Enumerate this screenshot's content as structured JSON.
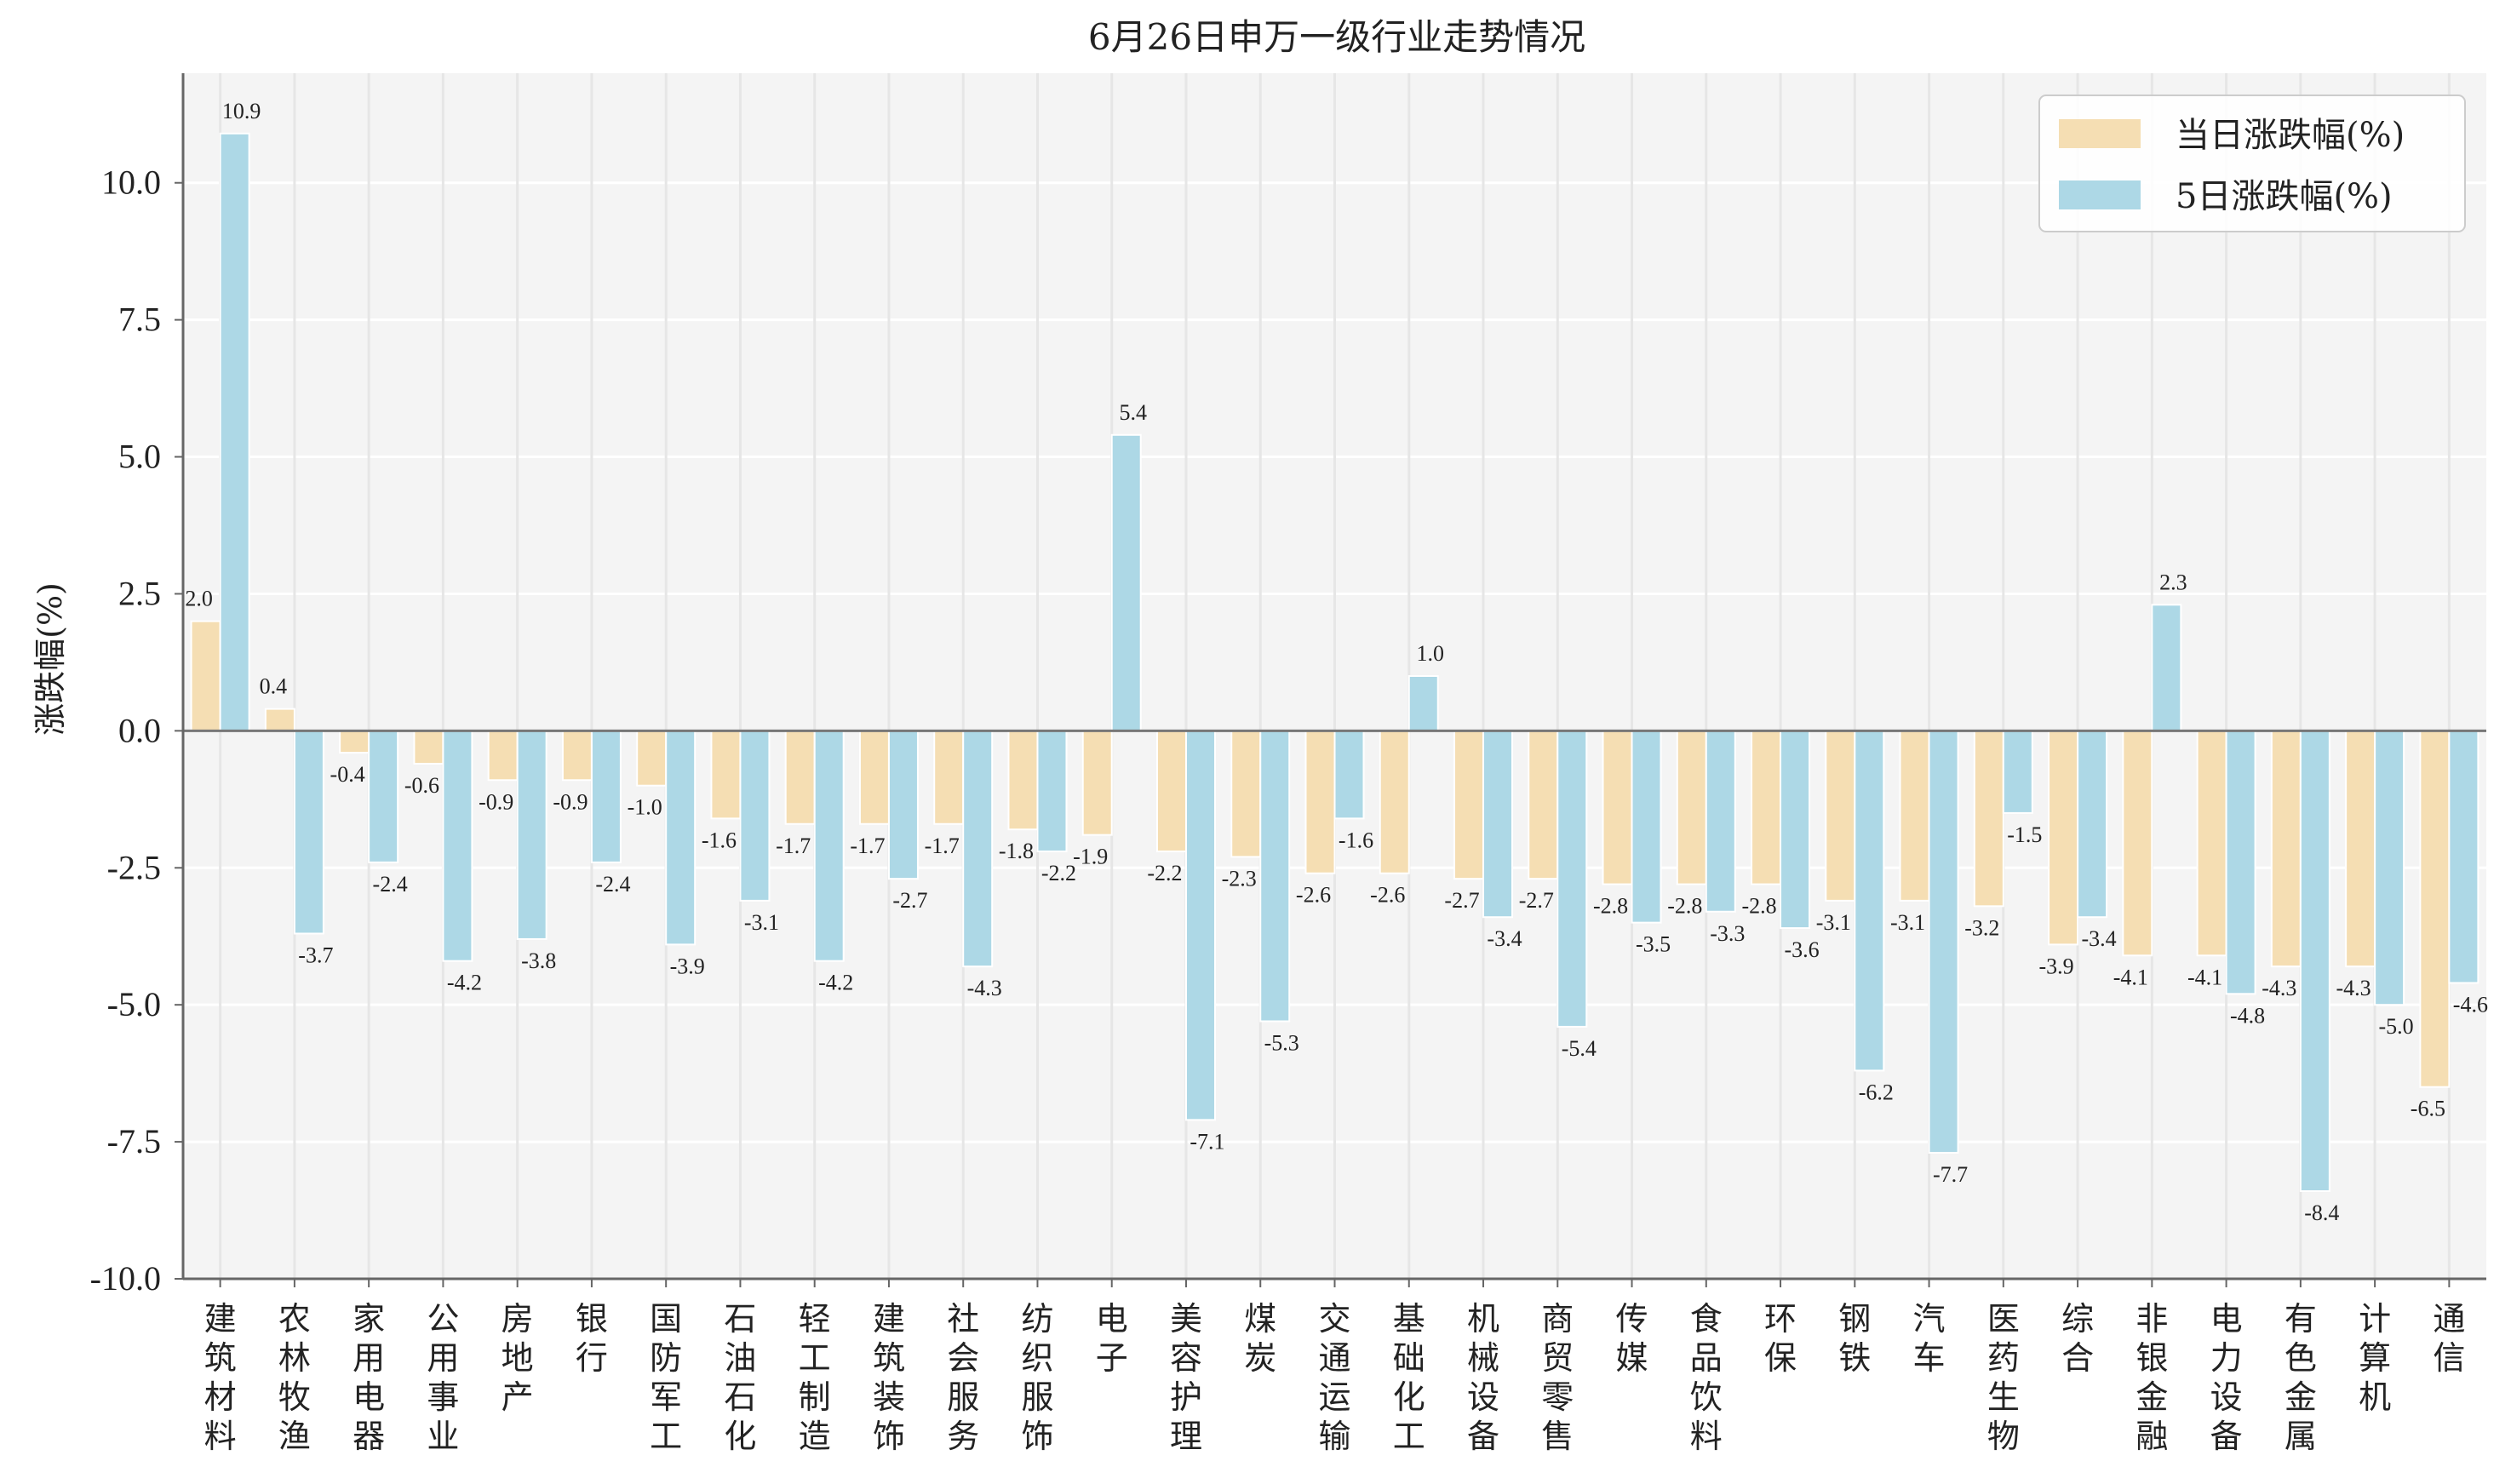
{
  "chart_data": {
    "type": "bar",
    "title": "6月26日申万一级行业走势情况",
    "ylabel": "涨跌幅(%)",
    "ylim": [
      -10,
      12
    ],
    "yticks": [
      "10.0",
      "7.5",
      "5.0",
      "2.5",
      "0.0",
      "-2.5",
      "-5.0",
      "-7.5",
      "-10.0"
    ],
    "ytick_values": [
      10,
      7.5,
      5,
      2.5,
      0,
      -2.5,
      -5,
      -7.5,
      -10
    ],
    "grid": true,
    "legend": "top-right",
    "categories": [
      "建筑材料",
      "农林牧渔",
      "家用电器",
      "公用事业",
      "房地产",
      "银行",
      "国防军工",
      "石油石化",
      "轻工制造",
      "建筑装饰",
      "社会服务",
      "纺织服饰",
      "电子",
      "美容护理",
      "煤炭",
      "交通运输",
      "基础化工",
      "机械设备",
      "商贸零售",
      "传媒",
      "食品饮料",
      "环保",
      "钢铁",
      "汽车",
      "医药生物",
      "综合",
      "非银金融",
      "电力设备",
      "有色金属",
      "计算机",
      "通信"
    ],
    "series": [
      {
        "name": "当日涨跌幅(%)",
        "color": "#f5deb3",
        "values": [
          2.0,
          0.4,
          -0.4,
          -0.6,
          -0.9,
          -0.9,
          -1.0,
          -1.6,
          -1.7,
          -1.7,
          -1.7,
          -1.8,
          -1.9,
          -2.2,
          -2.3,
          -2.6,
          -2.6,
          -2.7,
          -2.7,
          -2.8,
          -2.8,
          -2.8,
          -3.1,
          -3.1,
          -3.2,
          -3.9,
          -4.1,
          -4.1,
          -4.3,
          -4.3,
          -6.5
        ]
      },
      {
        "name": "5日涨跌幅(%)",
        "color": "#add8e6",
        "values": [
          10.9,
          -3.7,
          -2.4,
          -4.2,
          -3.8,
          -2.4,
          -3.9,
          -3.1,
          -4.2,
          -2.7,
          -4.3,
          -2.2,
          5.4,
          -7.1,
          -5.3,
          -1.6,
          1.0,
          -3.4,
          -5.4,
          -3.5,
          -3.3,
          -3.6,
          -6.2,
          -7.7,
          -1.5,
          -3.4,
          2.3,
          -4.8,
          -8.4,
          -5.0,
          -4.6
        ]
      }
    ]
  }
}
